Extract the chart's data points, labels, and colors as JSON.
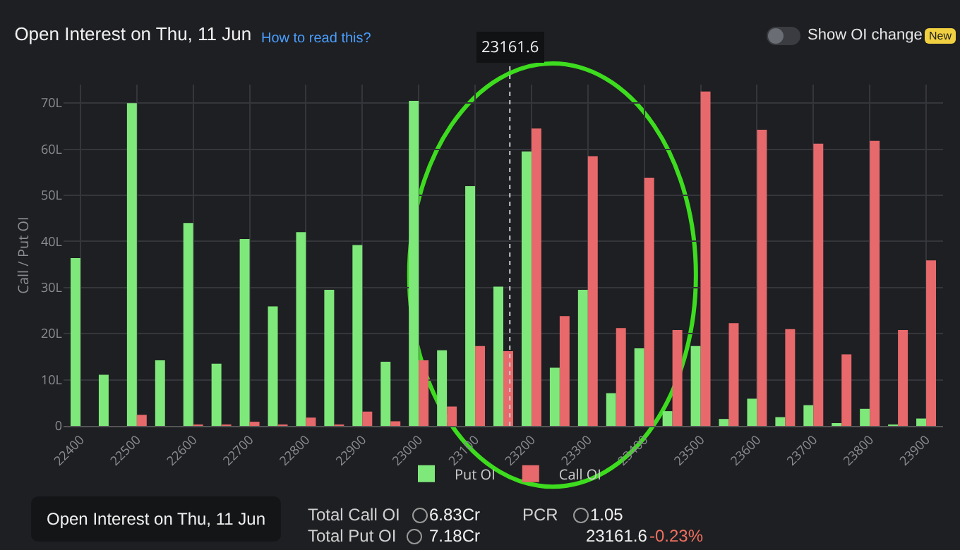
{
  "chart_data": {
    "type": "bar",
    "title": "Open Interest on Thu, 11 Jun",
    "ylabel": "Call / Put OI",
    "x": [
      22400,
      22450,
      22500,
      22550,
      22600,
      22650,
      22700,
      22750,
      22800,
      22850,
      22900,
      22950,
      23000,
      23050,
      23100,
      23150,
      23200,
      23250,
      23300,
      23350,
      23400,
      23450,
      23500,
      23550,
      23600,
      23650,
      23700,
      23750,
      23800,
      23850,
      23900
    ],
    "series": [
      {
        "name": "Put OI",
        "color": "#7ee87a",
        "values": [
          36.4,
          11.1,
          70,
          14.2,
          44,
          13.5,
          40.5,
          25.9,
          42,
          29.5,
          39.2,
          13.9,
          70.5,
          16.4,
          52,
          30.2,
          59.5,
          12.6,
          29.5,
          7.1,
          16.8,
          3.2,
          17.3,
          1.5,
          5.9,
          1.9,
          4.5,
          0.5,
          3.7,
          0.3,
          1.6
        ]
      },
      {
        "name": "Call OI",
        "color": "#e8696b",
        "values": [
          0,
          0,
          2.4,
          0,
          0.3,
          0.3,
          0.9,
          0.3,
          1.8,
          0.3,
          3.1,
          1.0,
          14.2,
          4.2,
          17.3,
          16.2,
          64.5,
          23.8,
          58.5,
          21.2,
          53.8,
          20.8,
          72.5,
          22.3,
          64.2,
          21,
          61.2,
          15.5,
          61.8,
          20.8,
          35.9
        ]
      }
    ],
    "xlim": [
      22370,
      23930
    ],
    "xticks": [
      22400,
      22500,
      22600,
      22700,
      22800,
      22900,
      23000,
      23100,
      23200,
      23300,
      23400,
      23500,
      23600,
      23700,
      23800,
      23900
    ],
    "ylim": [
      0,
      74
    ],
    "yticks": [
      0,
      {
        "value": 10,
        "label": "10L"
      },
      {
        "value": 20,
        "label": "20L"
      },
      {
        "value": 30,
        "label": "30L"
      },
      {
        "value": 40,
        "label": "40L"
      },
      {
        "value": 50,
        "label": "50L"
      },
      {
        "value": 60,
        "label": "60L"
      },
      {
        "value": 70,
        "label": "70L"
      }
    ],
    "ref_lines": [
      {
        "axis": "x",
        "value": 23161.6,
        "label": "23161.6",
        "color": "#cccccc",
        "line_style": "dotted"
      }
    ],
    "grid": true,
    "legend": "bottom",
    "annotations": [
      "How to read this?",
      "Show OI change",
      "New",
      "Open Interest on Thu, 11 Jun",
      "Total Call OI",
      "6.83Cr",
      "PCR",
      "1.05",
      "Total Put OI",
      "7.18Cr",
      "23161.6",
      "-0.23%"
    ]
  }
}
